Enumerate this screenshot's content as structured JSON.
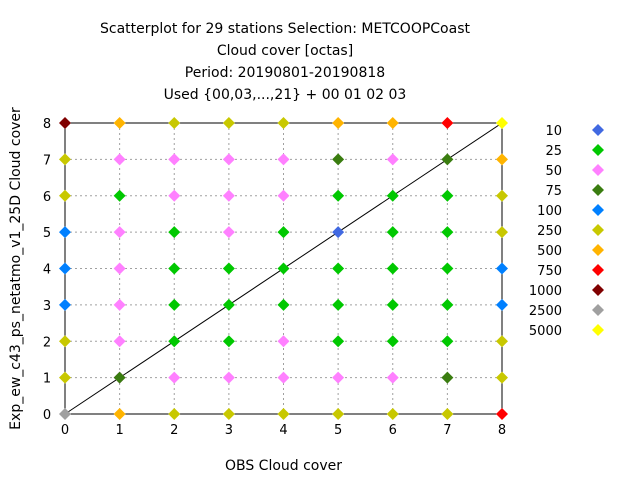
{
  "chart_data": {
    "type": "scatter",
    "title_lines": [
      "Scatterplot for   29 stations Selection: METCOOPCoast",
      "Cloud cover [octas]",
      "Period: 20190801-20190818",
      "Used {00,03,...,21} + 00 01 02 03"
    ],
    "xlabel": "OBS Cloud cover",
    "ylabel": "Exp_ew_c43_ps_netatmo_v1_25D Cloud cover",
    "xlim": [
      0,
      8
    ],
    "ylim": [
      0,
      8
    ],
    "xticks": [
      "0",
      "1",
      "2",
      "3",
      "4",
      "5",
      "6",
      "7",
      "8"
    ],
    "yticks": [
      "0",
      "1",
      "2",
      "3",
      "4",
      "5",
      "6",
      "7",
      "8"
    ],
    "grid": true,
    "diagonal": true,
    "legend_position": "right",
    "series": [
      {
        "name": "10",
        "color": "#4169e1",
        "points": [
          [
            5,
            5
          ]
        ]
      },
      {
        "name": "25",
        "color": "#00c800",
        "points": [
          [
            1,
            6
          ],
          [
            2,
            2
          ],
          [
            2,
            3
          ],
          [
            2,
            4
          ],
          [
            2,
            5
          ],
          [
            3,
            2
          ],
          [
            3,
            3
          ],
          [
            3,
            4
          ],
          [
            4,
            3
          ],
          [
            4,
            4
          ],
          [
            4,
            5
          ],
          [
            5,
            2
          ],
          [
            5,
            3
          ],
          [
            5,
            4
          ],
          [
            5,
            6
          ],
          [
            6,
            2
          ],
          [
            6,
            3
          ],
          [
            6,
            4
          ],
          [
            6,
            5
          ],
          [
            6,
            6
          ],
          [
            7,
            2
          ],
          [
            7,
            3
          ],
          [
            7,
            4
          ],
          [
            7,
            5
          ],
          [
            7,
            6
          ]
        ]
      },
      {
        "name": "50",
        "color": "#ff80ff",
        "points": [
          [
            1,
            1
          ],
          [
            1,
            2
          ],
          [
            1,
            3
          ],
          [
            1,
            4
          ],
          [
            1,
            5
          ],
          [
            1,
            7
          ],
          [
            2,
            1
          ],
          [
            2,
            6
          ],
          [
            2,
            7
          ],
          [
            3,
            1
          ],
          [
            3,
            5
          ],
          [
            3,
            6
          ],
          [
            3,
            7
          ],
          [
            4,
            1
          ],
          [
            4,
            2
          ],
          [
            4,
            6
          ],
          [
            4,
            7
          ],
          [
            5,
            1
          ],
          [
            6,
            1
          ],
          [
            6,
            7
          ]
        ]
      },
      {
        "name": "75",
        "color": "#3a7d10",
        "points": [
          [
            1,
            1
          ],
          [
            5,
            7
          ],
          [
            7,
            7
          ],
          [
            7,
            1
          ]
        ]
      },
      {
        "name": "100",
        "color": "#0080ff",
        "points": [
          [
            0,
            5
          ],
          [
            0,
            4
          ],
          [
            0,
            3
          ],
          [
            8,
            4
          ],
          [
            8,
            3
          ]
        ]
      },
      {
        "name": "250",
        "color": "#c8c800",
        "points": [
          [
            0,
            7
          ],
          [
            0,
            6
          ],
          [
            0,
            2
          ],
          [
            0,
            1
          ],
          [
            2,
            8
          ],
          [
            3,
            8
          ],
          [
            4,
            8
          ],
          [
            2,
            0
          ],
          [
            3,
            0
          ],
          [
            4,
            0
          ],
          [
            5,
            0
          ],
          [
            6,
            0
          ],
          [
            7,
            0
          ],
          [
            8,
            6
          ],
          [
            8,
            5
          ],
          [
            8,
            2
          ],
          [
            8,
            1
          ]
        ]
      },
      {
        "name": "500",
        "color": "#ffb400",
        "points": [
          [
            1,
            8
          ],
          [
            5,
            8
          ],
          [
            6,
            8
          ],
          [
            1,
            0
          ],
          [
            8,
            7
          ]
        ]
      },
      {
        "name": "750",
        "color": "#ff0000",
        "points": [
          [
            7,
            8
          ],
          [
            8,
            0
          ]
        ]
      },
      {
        "name": "1000",
        "color": "#800000",
        "points": [
          [
            0,
            8
          ]
        ]
      },
      {
        "name": "2500",
        "color": "#a0a0a0",
        "points": [
          [
            0,
            0
          ]
        ]
      },
      {
        "name": "5000",
        "color": "#ffff00",
        "points": [
          [
            8,
            8
          ]
        ]
      }
    ]
  }
}
